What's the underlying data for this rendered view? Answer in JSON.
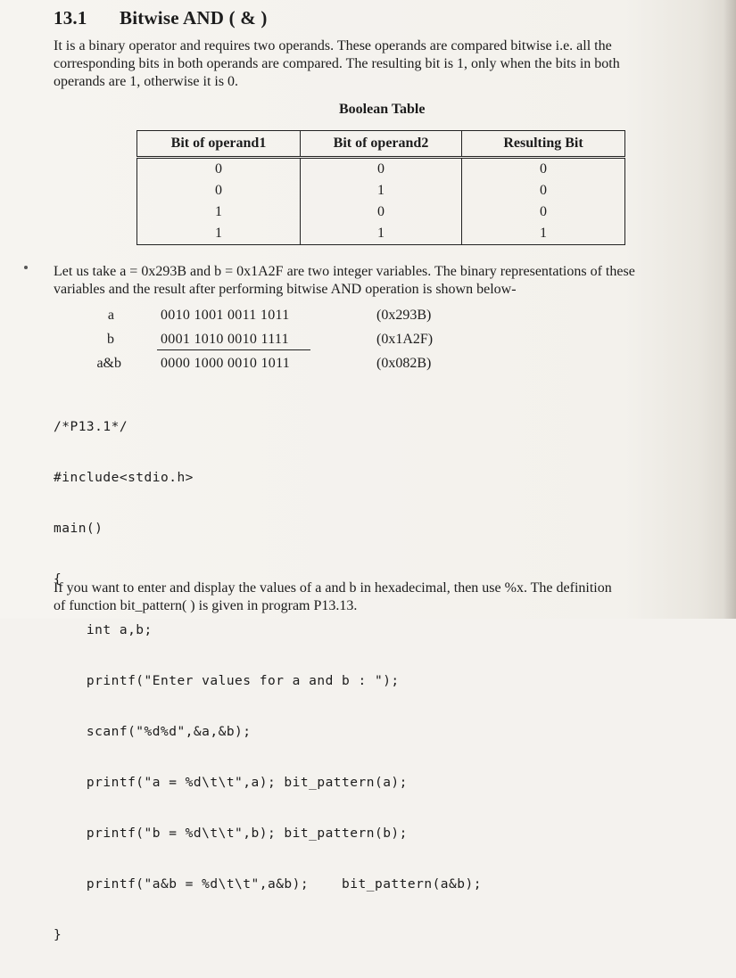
{
  "heading": {
    "number": "13.1",
    "title": "Bitwise AND ( & )"
  },
  "intro_lines": [
    "It is a binary operator and requires two operands. These operands are compared bitwise i.e. all the",
    "corresponding bits in both operands are compared. The resulting bit is 1, only when the bits in both",
    "operands are 1, otherwise it is 0."
  ],
  "table": {
    "caption": "Boolean Table",
    "headers": [
      "Bit of operand1",
      "Bit of operand2",
      "Resulting Bit"
    ],
    "rows": [
      [
        "0",
        "0",
        "0"
      ],
      [
        "0",
        "1",
        "0"
      ],
      [
        "1",
        "0",
        "0"
      ],
      [
        "1",
        "1",
        "1"
      ]
    ]
  },
  "example_lines": [
    "Let us take a = 0x293B and b = 0x1A2F are two integer variables. The binary representations of these",
    "variables and the result after performing bitwise AND operation is shown below-"
  ],
  "binary": [
    {
      "label": "a",
      "bits": "0010 1001 0011 1011",
      "hex": "(0x293B)"
    },
    {
      "label": "b",
      "bits": "0001 1010 0010 1111",
      "hex": "(0x1A2F)"
    },
    {
      "label": "a&b",
      "bits": "0000 1000 0010 1011",
      "hex": "(0x082B)"
    }
  ],
  "code_lines": [
    "/*P13.1*/",
    "#include<stdio.h>",
    "main()",
    "{",
    "    int a,b;",
    "    printf(\"Enter values for a and b : \");",
    "    scanf(\"%d%d\",&a,&b);",
    "    printf(\"a = %d\\t\\t\",a); bit_pattern(a);",
    "    printf(\"b = %d\\t\\t\",b); bit_pattern(b);",
    "    printf(\"a&b = %d\\t\\t\",a&b);    bit_pattern(a&b);",
    "}"
  ],
  "closing_lines": [
    "If you want to enter and display the values of a and b in hexadecimal, then use %x. The definition",
    "of function bit_pattern( ) is given in program P13.13."
  ]
}
